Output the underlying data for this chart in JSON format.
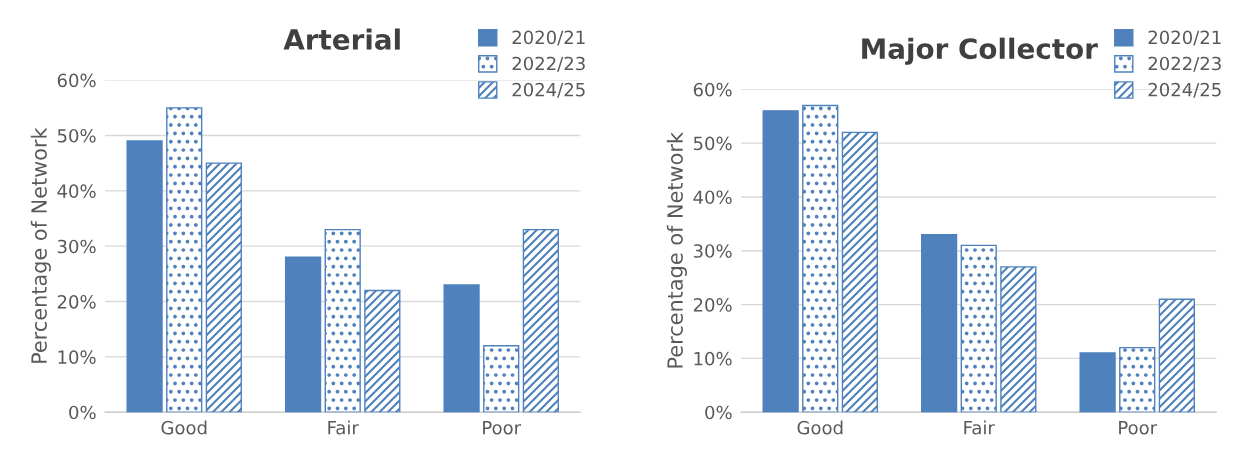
{
  "chart_data": [
    {
      "type": "bar",
      "title": "Arterial",
      "ylabel": "Percentage of Network",
      "categories": [
        "Good",
        "Fair",
        "Poor"
      ],
      "series": [
        {
          "name": "2020/21",
          "color": "#4f81bd",
          "values": [
            49,
            28,
            23
          ]
        },
        {
          "name": "2022/23",
          "color": "#4f81bd",
          "values": [
            55,
            33,
            12
          ]
        },
        {
          "name": "2024/25",
          "color": "#4f81bd",
          "values": [
            45,
            22,
            33
          ]
        }
      ],
      "ylim": [
        0,
        60
      ],
      "yticks": [
        {
          "value": 0,
          "label": "0%"
        },
        {
          "value": 10,
          "label": "10%"
        },
        {
          "value": 20,
          "label": "20%"
        },
        {
          "value": 30,
          "label": "30%"
        },
        {
          "value": 40,
          "label": "40%"
        },
        {
          "value": 50,
          "label": "50%"
        },
        {
          "value": 60,
          "label": "60%"
        }
      ],
      "grid": "y",
      "legend": "top right"
    },
    {
      "type": "bar",
      "title": "Major Collector",
      "ylabel": "Percentage of Network",
      "categories": [
        "Good",
        "Fair",
        "Poor"
      ],
      "series": [
        {
          "name": "2020/21",
          "color": "#4f81bd",
          "values": [
            56,
            33,
            11
          ]
        },
        {
          "name": "2022/23",
          "color": "#4f81bd",
          "values": [
            57,
            31,
            12
          ]
        },
        {
          "name": "2024/25",
          "color": "#4f81bd",
          "values": [
            52,
            27,
            21
          ]
        }
      ],
      "ylim": [
        0,
        60
      ],
      "yticks": [
        {
          "value": 0,
          "label": "0%"
        },
        {
          "value": 10,
          "label": "10%"
        },
        {
          "value": 20,
          "label": "20%"
        },
        {
          "value": 30,
          "label": "30%"
        },
        {
          "value": 40,
          "label": "40%"
        },
        {
          "value": 50,
          "label": "50%"
        },
        {
          "value": 60,
          "label": "60%"
        }
      ],
      "grid": "y",
      "legend": "top right"
    }
  ]
}
